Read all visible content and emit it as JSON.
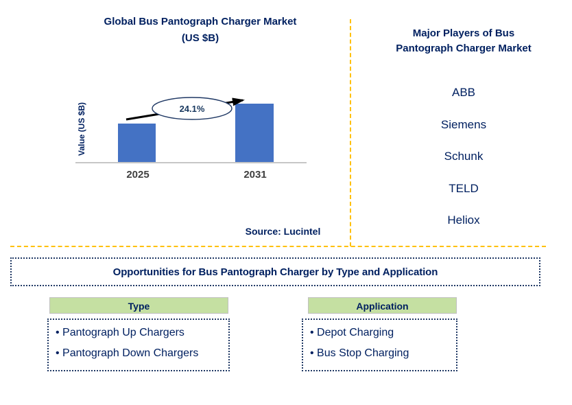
{
  "chart_data": {
    "type": "bar",
    "title": "Global Bus Pantograph Charger Market (US $B)",
    "categories": [
      "2025",
      "2031"
    ],
    "values_relative_height": [
      0.66,
      1.0
    ],
    "ylabel": "Value (US $B)",
    "y_axis_ticks_visible": false,
    "growth_label": "24.1%",
    "bar_color": "#4472C4",
    "source_note": "Source: Lucintel"
  },
  "chart": {
    "title_line1": "Global Bus Pantograph Charger Market",
    "title_line2": "(US $B)",
    "ylabel": "Value (US $B)",
    "growth_label": "24.1%",
    "source_note": "Source: Lucintel"
  },
  "right_panel": {
    "title_line1": "Major Players of Bus",
    "title_line2": "Pantograph Charger Market",
    "players": [
      "ABB",
      "Siemens",
      "Schunk",
      "TELD",
      "Heliox"
    ]
  },
  "opportunities": {
    "title": "Opportunities for Bus Pantograph Charger by Type and Application"
  },
  "type_section": {
    "header": "Type",
    "items": [
      "Pantograph Up Chargers",
      "Pantograph Down Chargers"
    ]
  },
  "application_section": {
    "header": "Application",
    "items": [
      "Depot Charging",
      "Bus Stop Charging"
    ]
  },
  "colors": {
    "navy_text": "#002060",
    "bar_blue": "#4472C4",
    "dashed_line_yellow": "#FFC000",
    "section_header_green": "#C5E0A2",
    "axis_gray": "#C6C6C6",
    "year_label_gray": "#3F3F3F",
    "arrow_black": "#000000"
  }
}
